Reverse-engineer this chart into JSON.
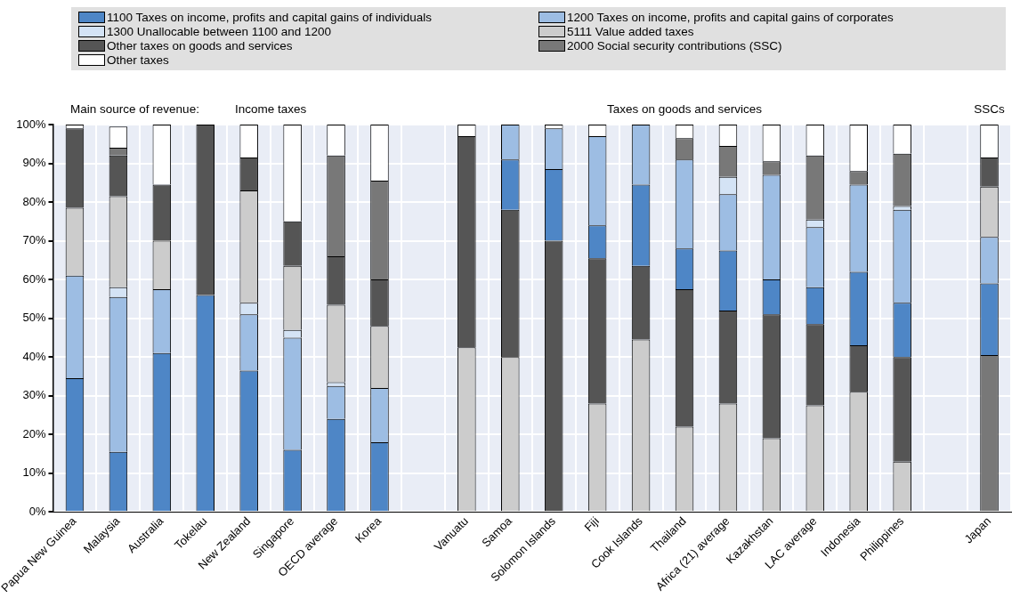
{
  "chart_data": {
    "type": "bar",
    "stacked": true,
    "grid": true,
    "legend": "top",
    "categories": [
      "Papua New Guinea",
      "Malaysia",
      "Australia",
      "Tokelau",
      "New Zealand",
      "Singapore",
      "OECD average",
      "Korea",
      null,
      "Vanuatu",
      "Samoa",
      "Solomon Islands",
      "Fiji",
      "Cook Islands",
      "Thailand",
      "Africa (21) average",
      "Kazakhstan",
      "LAC average",
      "Indonesia",
      "Philippines",
      null,
      "Japan"
    ],
    "ylim": [
      0,
      100
    ],
    "yticks": [
      {
        "value": 0,
        "label": "0%"
      },
      {
        "value": 10,
        "label": "10%"
      },
      {
        "value": 20,
        "label": "20%"
      },
      {
        "value": 30,
        "label": "30%"
      },
      {
        "value": 40,
        "label": "40%"
      },
      {
        "value": 50,
        "label": "50%"
      },
      {
        "value": 60,
        "label": "60%"
      },
      {
        "value": 70,
        "label": "70%"
      },
      {
        "value": 80,
        "label": "80%"
      },
      {
        "value": 90,
        "label": "90%"
      },
      {
        "value": 100,
        "label": "100%"
      }
    ],
    "annotations": [
      "Main source of revenue:",
      "Income taxes",
      "Taxes on goods and services",
      "SSCs"
    ],
    "series": [
      {
        "color": "#787878",
        "values": [
          null,
          null,
          null,
          null,
          null,
          null,
          null,
          null,
          null,
          null,
          null,
          null,
          null,
          null,
          null,
          null,
          null,
          null,
          null,
          null,
          null,
          40.5
        ]
      },
      {
        "color": "#cccccc",
        "values": [
          null,
          null,
          null,
          null,
          null,
          null,
          null,
          null,
          null,
          42.5,
          40,
          0,
          28,
          44.5,
          22,
          28,
          19,
          27.5,
          31,
          13,
          null,
          null
        ]
      },
      {
        "color": "#555555",
        "values": [
          null,
          null,
          null,
          null,
          null,
          null,
          null,
          null,
          null,
          54.5,
          38,
          70,
          37.5,
          19,
          35.5,
          24,
          32,
          21,
          12,
          27,
          null,
          null
        ]
      },
      {
        "name": "1100 Taxes on income, profits and capital gains of individuals",
        "color": "#4e86c6",
        "values": [
          34.5,
          15.5,
          41,
          56,
          36.5,
          16,
          24,
          18,
          null,
          0,
          13,
          18.5,
          8.5,
          21,
          10.5,
          15.5,
          9,
          9.5,
          19,
          14,
          null,
          18.5
        ]
      },
      {
        "name": "1200 Taxes on income, profits and capital gains of corporates",
        "color": "#9dbde3",
        "values": [
          26.5,
          40,
          16.5,
          0,
          14.5,
          29,
          8.5,
          14,
          null,
          0,
          9,
          10.5,
          23,
          15.5,
          23,
          14.5,
          27,
          15.5,
          22.5,
          24,
          null,
          12
        ]
      },
      {
        "name": "1300 Unallocable between 1100 and 1200",
        "color": "#d4e3f5",
        "values": [
          0,
          2.5,
          0,
          0,
          3,
          2,
          1,
          0,
          null,
          0,
          0,
          0,
          0,
          0,
          0,
          4.5,
          0,
          2,
          0,
          1,
          null,
          0
        ]
      },
      {
        "name": "5111 Value added taxes",
        "color": "#cccccc",
        "values": [
          17.5,
          23.5,
          12.5,
          0,
          29,
          16.5,
          20,
          16,
          null,
          null,
          null,
          null,
          null,
          null,
          null,
          null,
          null,
          null,
          null,
          null,
          null,
          13
        ]
      },
      {
        "name": "Other taxes on goods and services",
        "color": "#555555",
        "values": [
          20.5,
          10.5,
          14.5,
          44,
          8.5,
          11.5,
          12.5,
          12,
          null,
          null,
          null,
          null,
          null,
          null,
          null,
          null,
          null,
          null,
          null,
          null,
          null,
          7.5
        ]
      },
      {
        "name": "2000 Social security contributions (SSC)",
        "color": "#787878",
        "values": [
          0,
          2,
          0,
          0,
          0,
          0,
          26,
          25.5,
          null,
          0,
          0,
          0,
          0,
          0,
          5.5,
          8,
          3.5,
          16.5,
          3.5,
          13.5,
          null,
          null
        ]
      },
      {
        "name": "Other taxes",
        "color": "#ffffff",
        "values": [
          1,
          5.5,
          15.5,
          0,
          8.5,
          25,
          8,
          14.5,
          null,
          3,
          0,
          1,
          3,
          0,
          3.5,
          5.5,
          9.5,
          8,
          12,
          7.5,
          null,
          8.5
        ]
      }
    ]
  }
}
